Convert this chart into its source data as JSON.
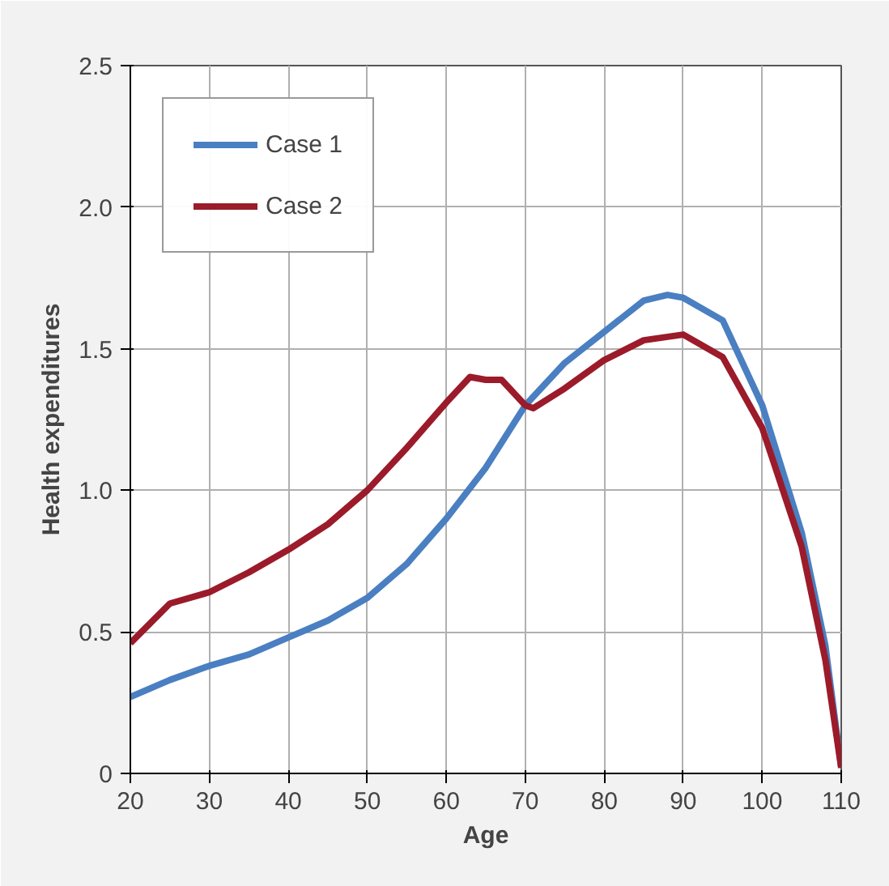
{
  "chart_data": {
    "type": "line",
    "xlabel": "Age",
    "ylabel": "Health expenditures",
    "xlim": [
      20,
      110
    ],
    "ylim": [
      0,
      2.5
    ],
    "xticks": [
      20,
      30,
      40,
      50,
      60,
      70,
      80,
      90,
      100,
      110
    ],
    "yticks": [
      0,
      0.5,
      {
        "value": 1,
        "label": "1.0"
      },
      1.5,
      {
        "value": 2,
        "label": "2.0"
      },
      2.5
    ],
    "grid": true,
    "legend": "top left",
    "series": [
      {
        "name": "Case 1",
        "color": "#4a7fc1",
        "x": [
          20,
          25,
          30,
          35,
          40,
          45,
          50,
          55,
          60,
          65,
          70,
          75,
          80,
          85,
          88,
          90,
          95,
          100,
          105,
          108,
          110
        ],
        "values": [
          0.27,
          0.33,
          0.38,
          0.42,
          0.48,
          0.54,
          0.62,
          0.74,
          0.9,
          1.08,
          1.3,
          1.45,
          1.56,
          1.67,
          1.69,
          1.68,
          1.6,
          1.3,
          0.85,
          0.45,
          0.02
        ]
      },
      {
        "name": "Case 2",
        "color": "#9b1b2a",
        "x": [
          20,
          25,
          30,
          35,
          40,
          45,
          50,
          55,
          60,
          63,
          65,
          67,
          70,
          71,
          75,
          80,
          85,
          90,
          95,
          100,
          105,
          108,
          110
        ],
        "values": [
          0.46,
          0.6,
          0.64,
          0.71,
          0.79,
          0.88,
          1.0,
          1.15,
          1.31,
          1.4,
          1.39,
          1.39,
          1.3,
          1.29,
          1.36,
          1.46,
          1.53,
          1.55,
          1.47,
          1.22,
          0.8,
          0.4,
          0.02
        ]
      }
    ]
  }
}
